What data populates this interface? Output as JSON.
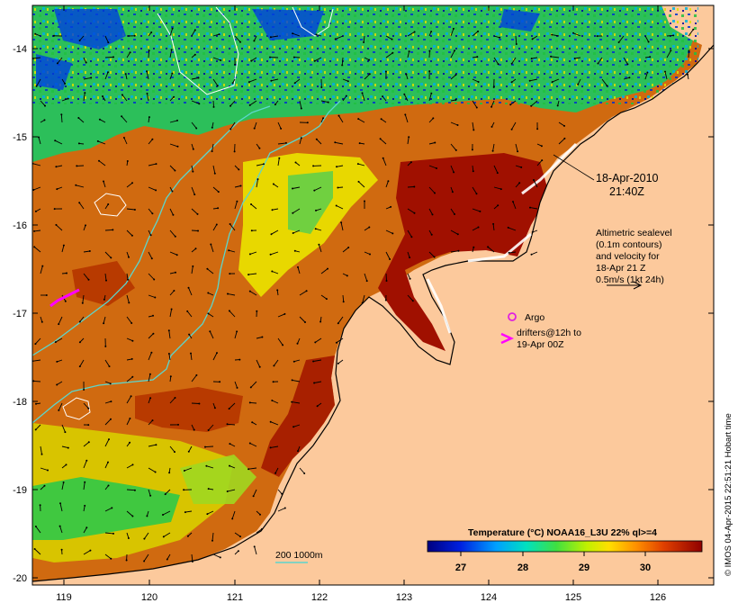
{
  "map": {
    "x_ticks": [
      "119",
      "120",
      "121",
      "122",
      "123",
      "124",
      "125",
      "126"
    ],
    "y_ticks": [
      "-14",
      "-15",
      "-16",
      "-17",
      "-18",
      "-19",
      "-20"
    ],
    "date_line1": "18-Apr-2010",
    "date_line2": "21:40Z",
    "altimetry_lines": [
      "Altimetric sealevel",
      "(0.1m contours)",
      "and velocity for",
      "18-Apr 21 Z",
      "0.5m/s (1kt 24h)"
    ],
    "argo_label": "Argo",
    "drifters_line1": "drifters@12h to",
    "drifters_line2": "19-Apr 00Z",
    "isobath_label": "200  1000m",
    "colorbar_title": "Temperature (°C) NOAA16_L3U 22% ql>=4",
    "colorbar_ticks": [
      "27",
      "28",
      "29",
      "30"
    ],
    "credit": "© IMOS 04-Apr-2015 22:51:21 Hobart time",
    "colors": {
      "land": "#fcc99c",
      "isobath": "#5cd6cc",
      "argo": "#e020e0",
      "drifter": "#ff00ff",
      "contour": "#ffffff"
    }
  }
}
